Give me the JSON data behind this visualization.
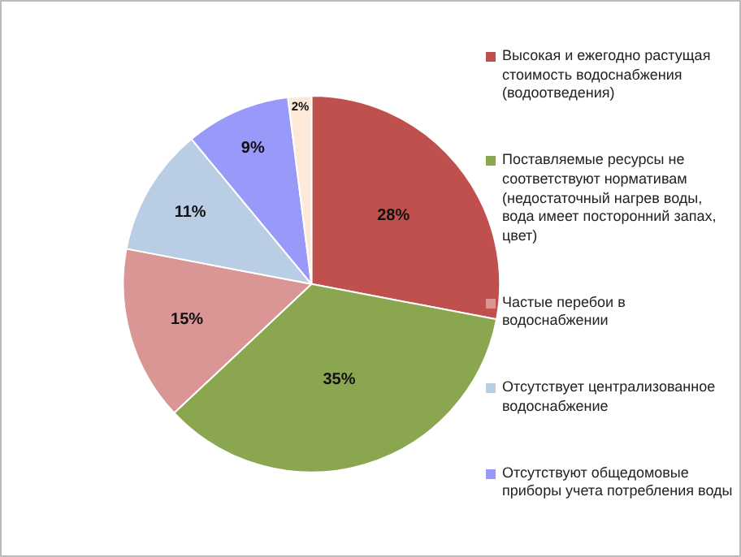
{
  "chart_data": {
    "type": "pie",
    "categories": [
      "Высокая и ежегодно растущая стоимость водоснабжения (водоотведения)",
      "Поставляемые ресурсы не соответствуют нормативам (недостаточный нагрев воды, вода имеет посторонний запах, цвет)",
      "Частые перебои в водоснабжении",
      "Отсутствует централизованное водоснабжение",
      "Отсутствуют общедомовые приборы учета потребления воды",
      null
    ],
    "values": [
      28,
      35,
      15,
      11,
      9,
      2
    ],
    "value_labels": [
      "28%",
      "35%",
      "15%",
      "11%",
      "9%",
      "2%"
    ],
    "colors": [
      "#c0504d",
      "#8aa64f",
      "#d99694",
      "#b9cde5",
      "#9999fa",
      "#fde9d9"
    ],
    "legend": "right"
  }
}
